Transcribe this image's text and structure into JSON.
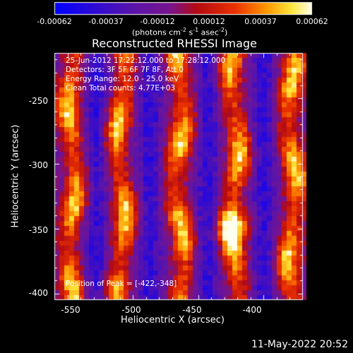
{
  "chart_data": {
    "type": "heatmap",
    "title": "Reconstructed RHESSI Image",
    "xlabel": "Heliocentric X (arcsec)",
    "ylabel": "Heliocentric Y (arcsec)",
    "xlim": [
      -560,
      -370
    ],
    "ylim": [
      -405,
      -215
    ],
    "x_ticks": [
      -550,
      -500,
      -450,
      -400
    ],
    "y_ticks": [
      -400,
      -350,
      -300,
      -250
    ],
    "colorbar": {
      "range": [
        -0.00062,
        0.00062
      ],
      "tick_labels": [
        "-0.00062",
        "-0.00037",
        "-0.00012",
        "0.00012",
        "0.00037",
        "0.00062"
      ],
      "units_parts": [
        "(photons cm",
        "-2",
        " s",
        "-1",
        " asec",
        "-2",
        ")"
      ]
    },
    "info_lines": [
      "25-Jun-2012 17:22:12.000 to 17:28:12.000",
      "Detectors: 3F 5F 6F 7F 8F, Att 0",
      "Energy Range: 12.0 - 25.0 keV",
      "Clean     Total counts: 4.77E+03"
    ],
    "peak_label": "Position of Peak = [-422,-348]",
    "bright_stripes_x": [
      -546,
      -509,
      -464,
      -422,
      -378
    ],
    "dark_stripes_x": [
      -528,
      -487,
      -443,
      -400
    ]
  },
  "timestamp": "11-May-2022 20:52"
}
